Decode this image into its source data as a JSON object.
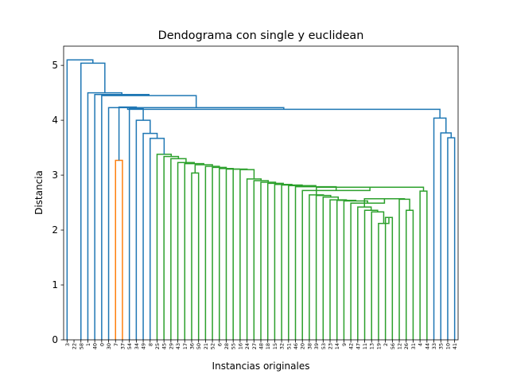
{
  "chart_data": {
    "type": "dendrogram",
    "title": "Dendograma con single y euclidean",
    "xlabel": "Instancias originales",
    "ylabel": "Distancia",
    "ylim": [
      0,
      5.35
    ],
    "yticks": [
      0,
      1,
      2,
      3,
      4,
      5
    ],
    "leaves": [
      "3",
      "22",
      "58",
      "1",
      "40",
      "0",
      "30",
      "7",
      "37",
      "54",
      "34",
      "49",
      "8",
      "25",
      "45",
      "29",
      "43",
      "17",
      "36",
      "50",
      "21",
      "52",
      "6",
      "28",
      "55",
      "16",
      "24",
      "27",
      "48",
      "18",
      "15",
      "32",
      "51",
      "46",
      "20",
      "38",
      "39",
      "53",
      "23",
      "14",
      "9",
      "42",
      "47",
      "11",
      "13",
      "19",
      "2",
      "56",
      "12",
      "26",
      "31",
      "4",
      "44",
      "33",
      "35",
      "10",
      "41"
    ],
    "colors": {
      "above_threshold": "#1f77b4",
      "cluster_1": "#ff7f0e",
      "cluster_2": "#2ca02c"
    },
    "merges": [
      {
        "id": "B",
        "a": "7",
        "b": "37",
        "h": 3.27,
        "color": "#ff7f0e"
      },
      {
        "id": "g1",
        "a": "2",
        "b": "56",
        "h": 2.23,
        "color": "#2ca02c"
      },
      {
        "id": "g2",
        "a": "19",
        "b": "g1",
        "h": 2.12,
        "color": "#2ca02c"
      },
      {
        "id": "g3",
        "a": "13",
        "b": "g2",
        "h": 2.33,
        "color": "#2ca02c"
      },
      {
        "id": "g4",
        "a": "11",
        "b": "g3",
        "h": 2.36,
        "color": "#2ca02c"
      },
      {
        "id": "g5",
        "a": "47",
        "b": "g4",
        "h": 2.42,
        "color": "#2ca02c"
      },
      {
        "id": "g6",
        "a": "26",
        "b": "31",
        "h": 2.36,
        "color": "#2ca02c"
      },
      {
        "id": "g7",
        "a": "12",
        "b": "g6",
        "h": 2.56,
        "color": "#2ca02c"
      },
      {
        "id": "g8",
        "a": "g5",
        "b": "g7",
        "h": 2.57,
        "color": "#2ca02c"
      },
      {
        "id": "g9",
        "a": "42",
        "b": "g8",
        "h": 2.49,
        "color": "#2ca02c"
      },
      {
        "id": "g10",
        "a": "9",
        "b": "g9",
        "h": 2.53,
        "color": "#2ca02c"
      },
      {
        "id": "g11",
        "a": "14",
        "b": "g10",
        "h": 2.54,
        "color": "#2ca02c"
      },
      {
        "id": "g12",
        "a": "23",
        "b": "g11",
        "h": 2.55,
        "color": "#2ca02c"
      },
      {
        "id": "g13",
        "a": "53",
        "b": "g12",
        "h": 2.6,
        "color": "#2ca02c"
      },
      {
        "id": "g14",
        "a": "39",
        "b": "g13",
        "h": 2.63,
        "color": "#2ca02c"
      },
      {
        "id": "g15",
        "a": "38",
        "b": "g14",
        "h": 2.64,
        "color": "#2ca02c"
      },
      {
        "id": "g16",
        "a": "4",
        "b": "44",
        "h": 2.71,
        "color": "#2ca02c"
      },
      {
        "id": "g17",
        "a": "g15",
        "b": "g16",
        "h": 2.78,
        "color": "#2ca02c"
      },
      {
        "id": "g18",
        "a": "20",
        "b": "g17",
        "h": 2.72,
        "color": "#2ca02c"
      },
      {
        "id": "g19",
        "a": "46",
        "b": "g18",
        "h": 2.79,
        "color": "#2ca02c"
      },
      {
        "id": "g20",
        "a": "51",
        "b": "g19",
        "h": 2.81,
        "color": "#2ca02c"
      },
      {
        "id": "g21",
        "a": "32",
        "b": "g20",
        "h": 2.82,
        "color": "#2ca02c"
      },
      {
        "id": "g22",
        "a": "15",
        "b": "g21",
        "h": 2.83,
        "color": "#2ca02c"
      },
      {
        "id": "g23",
        "a": "18",
        "b": "g22",
        "h": 2.85,
        "color": "#2ca02c"
      },
      {
        "id": "g24",
        "a": "48",
        "b": "g23",
        "h": 2.87,
        "color": "#2ca02c"
      },
      {
        "id": "g25",
        "a": "27",
        "b": "g24",
        "h": 2.9,
        "color": "#2ca02c"
      },
      {
        "id": "g26",
        "a": "24",
        "b": "g25",
        "h": 2.93,
        "color": "#2ca02c"
      },
      {
        "id": "g27",
        "a": "16",
        "b": "g26",
        "h": 3.1,
        "color": "#2ca02c"
      },
      {
        "id": "g28",
        "a": "55",
        "b": "g27",
        "h": 3.11,
        "color": "#2ca02c"
      },
      {
        "id": "g29",
        "a": "28",
        "b": "g28",
        "h": 3.11,
        "color": "#2ca02c"
      },
      {
        "id": "g30",
        "a": "6",
        "b": "g29",
        "h": 3.12,
        "color": "#2ca02c"
      },
      {
        "id": "g31",
        "a": "52",
        "b": "g30",
        "h": 3.14,
        "color": "#2ca02c"
      },
      {
        "id": "g32",
        "a": "21",
        "b": "g31",
        "h": 3.16,
        "color": "#2ca02c"
      },
      {
        "id": "g33",
        "a": "36",
        "b": "50",
        "h": 3.04,
        "color": "#2ca02c"
      },
      {
        "id": "g34",
        "a": "g33",
        "b": "g32",
        "h": 3.19,
        "color": "#2ca02c"
      },
      {
        "id": "g35",
        "a": "17",
        "b": "g34",
        "h": 3.21,
        "color": "#2ca02c"
      },
      {
        "id": "g36",
        "a": "43",
        "b": "g35",
        "h": 3.23,
        "color": "#2ca02c"
      },
      {
        "id": "g37",
        "a": "29",
        "b": "g36",
        "h": 3.3,
        "color": "#2ca02c"
      },
      {
        "id": "g38",
        "a": "45",
        "b": "g37",
        "h": 3.34,
        "color": "#2ca02c"
      },
      {
        "id": "g39",
        "a": "25",
        "b": "g38",
        "h": 3.38,
        "color": "#2ca02c"
      },
      {
        "id": "u1",
        "a": "8",
        "b": "g39",
        "h": 3.67,
        "color": "#1f77b4"
      },
      {
        "id": "u2",
        "a": "49",
        "b": "u1",
        "h": 3.76,
        "color": "#1f77b4"
      },
      {
        "id": "u3",
        "a": "34",
        "b": "u2",
        "h": 4.0,
        "color": "#1f77b4"
      },
      {
        "id": "u4",
        "a": "54",
        "b": "u3",
        "h": 4.21,
        "color": "#1f77b4"
      },
      {
        "id": "u5",
        "a": "B",
        "b": "u4",
        "h": 4.24,
        "color": "#1f77b4"
      },
      {
        "id": "r1",
        "a": "10",
        "b": "41",
        "h": 3.68,
        "color": "#1f77b4"
      },
      {
        "id": "r2",
        "a": "35",
        "b": "r1",
        "h": 3.77,
        "color": "#1f77b4"
      },
      {
        "id": "r3",
        "a": "33",
        "b": "r2",
        "h": 4.04,
        "color": "#1f77b4"
      },
      {
        "id": "u6",
        "a": "u5",
        "b": "r3",
        "h": 4.2,
        "color": "#1f77b4"
      },
      {
        "id": "u7",
        "a": "30",
        "b": "u6",
        "h": 4.23,
        "color": "#1f77b4"
      },
      {
        "id": "u8",
        "a": "0",
        "b": "u7",
        "h": 4.45,
        "color": "#1f77b4"
      },
      {
        "id": "u9",
        "a": "40",
        "b": "u8",
        "h": 4.47,
        "color": "#1f77b4"
      },
      {
        "id": "u10",
        "a": "1",
        "b": "u9",
        "h": 4.5,
        "color": "#1f77b4"
      },
      {
        "id": "u11",
        "a": "58",
        "b": "u10",
        "h": 5.04,
        "color": "#1f77b4"
      },
      {
        "id": "u12",
        "a": "3",
        "b": "u11",
        "h": 5.1,
        "color": "#1f77b4"
      }
    ]
  }
}
